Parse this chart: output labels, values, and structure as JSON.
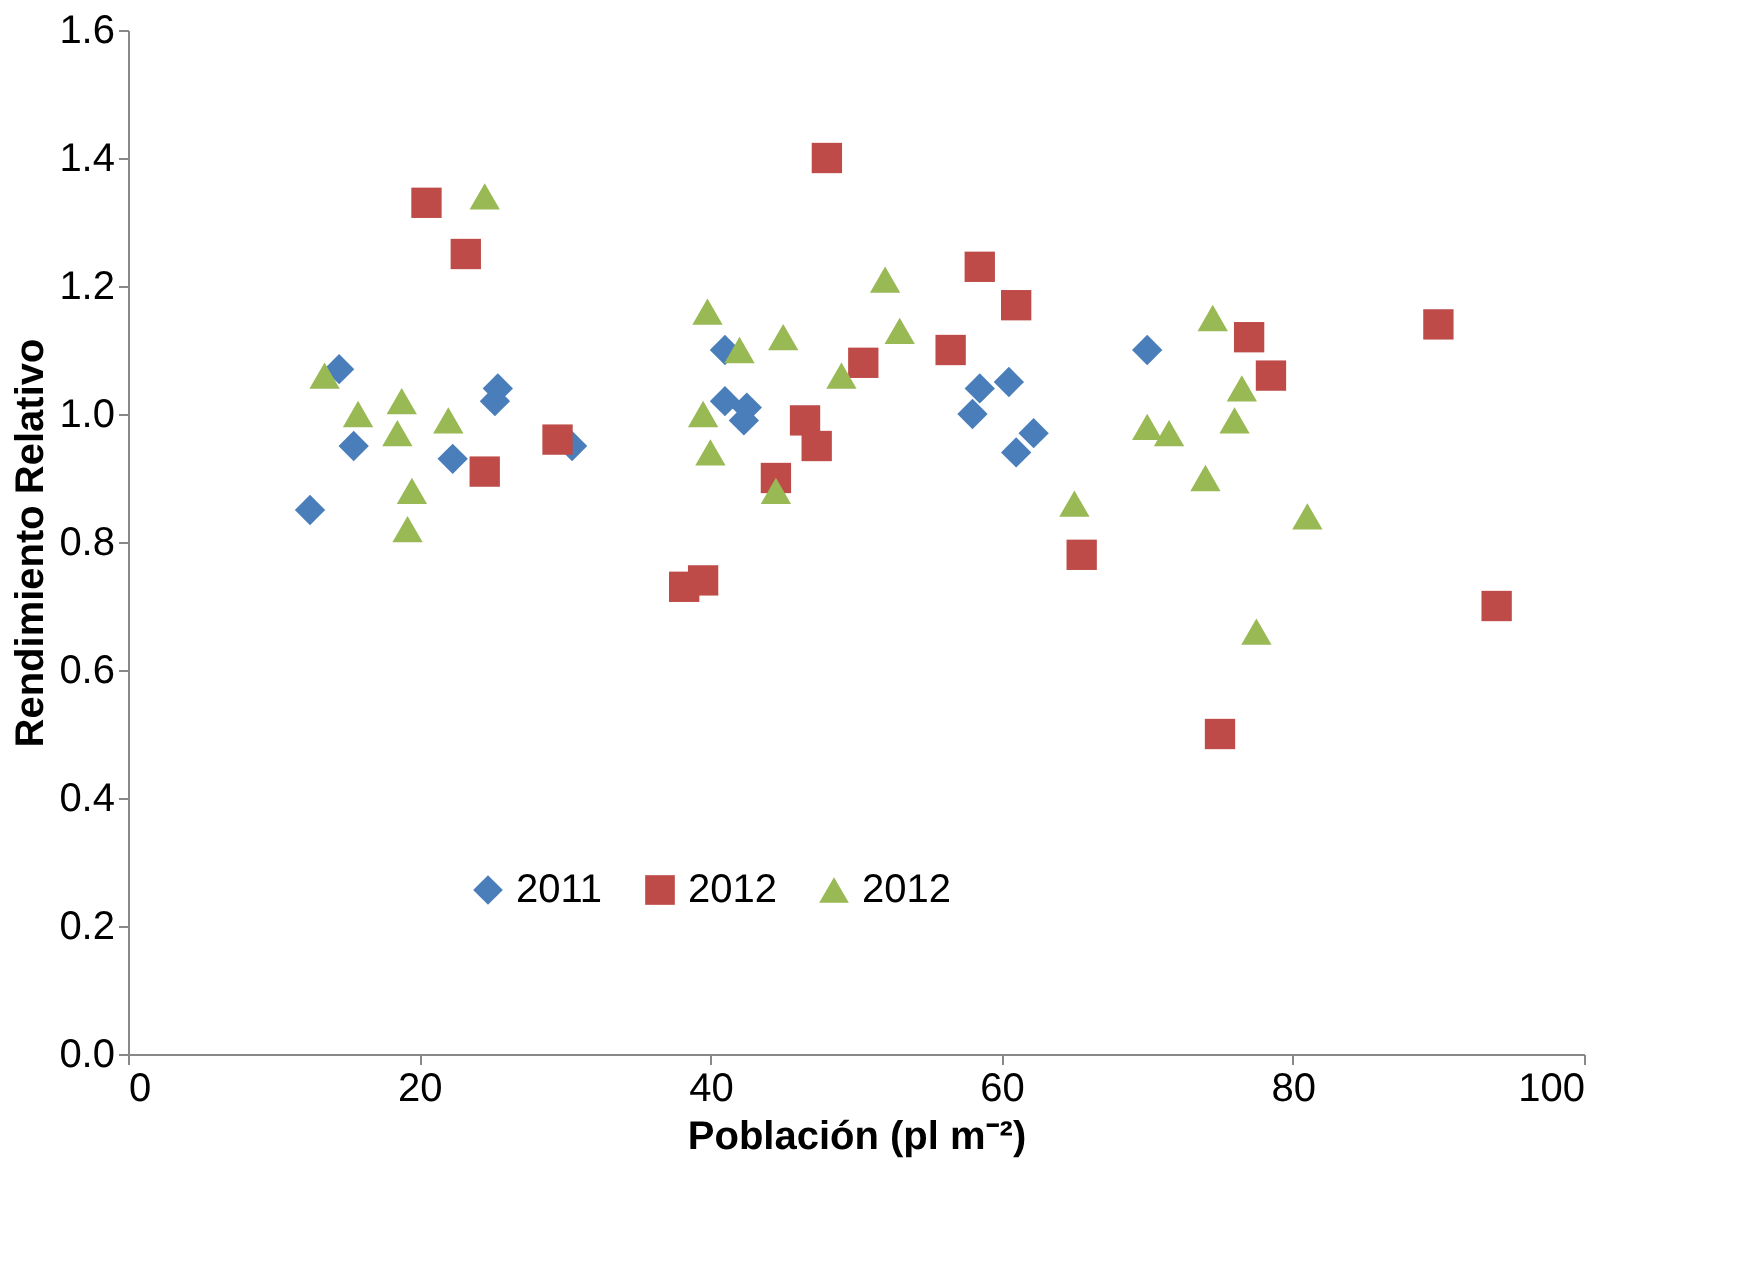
{
  "chart_data": {
    "type": "scatter",
    "xlabel": "Población (pl m⁻²)",
    "ylabel": "Rendimiento Relativo",
    "xlim": [
      0,
      100
    ],
    "xticks": [
      0,
      20,
      40,
      60,
      80,
      100
    ],
    "ylim": [
      0,
      1.6
    ],
    "yticks": [
      {
        "value": 0,
        "label": "0.0"
      },
      {
        "value": 0.2,
        "label": "0.2"
      },
      {
        "value": 0.4,
        "label": "0.4"
      },
      {
        "value": 0.6,
        "label": "0.6"
      },
      {
        "value": 0.8,
        "label": "0.8"
      },
      {
        "value": 1.0,
        "label": "1.0"
      },
      {
        "value": 1.2,
        "label": "1.2"
      },
      {
        "value": 1.4,
        "label": "1.4"
      },
      {
        "value": 1.6,
        "label": "1.6"
      }
    ],
    "grid": false,
    "legend": "bottom",
    "series": [
      {
        "name": "2011",
        "color": "#4a7ebb",
        "marker": "diamond",
        "x": [
          12.5,
          14.5,
          15.5,
          22.3,
          25.2,
          25.4,
          30.5,
          41,
          41,
          42.3,
          42.5,
          58,
          58.5,
          60.5,
          61,
          62.2,
          70
        ],
        "values": [
          0.85,
          1.07,
          0.95,
          0.93,
          1.02,
          1.04,
          0.95,
          1.1,
          1.02,
          0.99,
          1.01,
          1.0,
          1.04,
          1.05,
          0.94,
          0.97,
          1.1
        ]
      },
      {
        "name": "2012",
        "color": "#be4b48",
        "marker": "square",
        "x": [
          20.5,
          23.2,
          24.5,
          29.5,
          38.2,
          39.5,
          44.5,
          46.5,
          47.3,
          48,
          50.5,
          56.5,
          58.5,
          61,
          65.5,
          75,
          77,
          78.5,
          90,
          94
        ],
        "values": [
          1.33,
          1.25,
          0.91,
          0.96,
          0.73,
          0.74,
          0.9,
          0.99,
          0.95,
          1.4,
          1.08,
          1.1,
          1.23,
          1.17,
          0.78,
          0.5,
          1.12,
          1.06,
          1.14,
          0.7
        ]
      },
      {
        "name": "2012",
        "color": "#98b954",
        "marker": "triangle",
        "x": [
          13.5,
          15.8,
          18.5,
          18.8,
          19.5,
          19.2,
          22,
          24.5,
          39.8,
          39.5,
          40,
          42,
          44.5,
          45,
          49,
          52,
          53,
          65,
          70,
          71.5,
          74,
          74.5,
          76,
          76.5,
          77.5,
          81
        ],
        "values": [
          1.06,
          1.0,
          0.97,
          1.02,
          0.88,
          0.82,
          0.99,
          1.34,
          1.16,
          1.0,
          0.94,
          1.1,
          0.88,
          1.12,
          1.06,
          1.21,
          1.13,
          0.86,
          0.98,
          0.97,
          0.9,
          1.15,
          0.99,
          1.04,
          0.66,
          0.84
        ]
      }
    ]
  }
}
